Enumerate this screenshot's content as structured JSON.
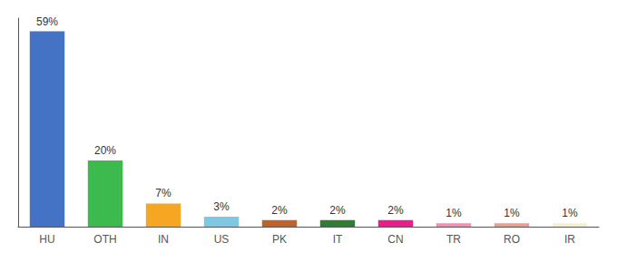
{
  "chart_data": {
    "type": "bar",
    "categories": [
      "HU",
      "OTH",
      "IN",
      "US",
      "PK",
      "IT",
      "CN",
      "TR",
      "RO",
      "IR"
    ],
    "values": [
      59,
      20,
      7,
      3,
      2,
      2,
      2,
      1,
      1,
      1
    ],
    "value_labels": [
      "59%",
      "20%",
      "7%",
      "3%",
      "2%",
      "2%",
      "2%",
      "1%",
      "1%",
      "1%"
    ],
    "colors": [
      "#4472c4",
      "#3dba4e",
      "#f5a623",
      "#7ec8e3",
      "#c0622b",
      "#2e7d32",
      "#e91e8c",
      "#f48fb1",
      "#e8a090",
      "#f5f0d0"
    ],
    "ylim": [
      0,
      63
    ],
    "grid": false,
    "data_labels": true,
    "tick_labels": "x"
  }
}
